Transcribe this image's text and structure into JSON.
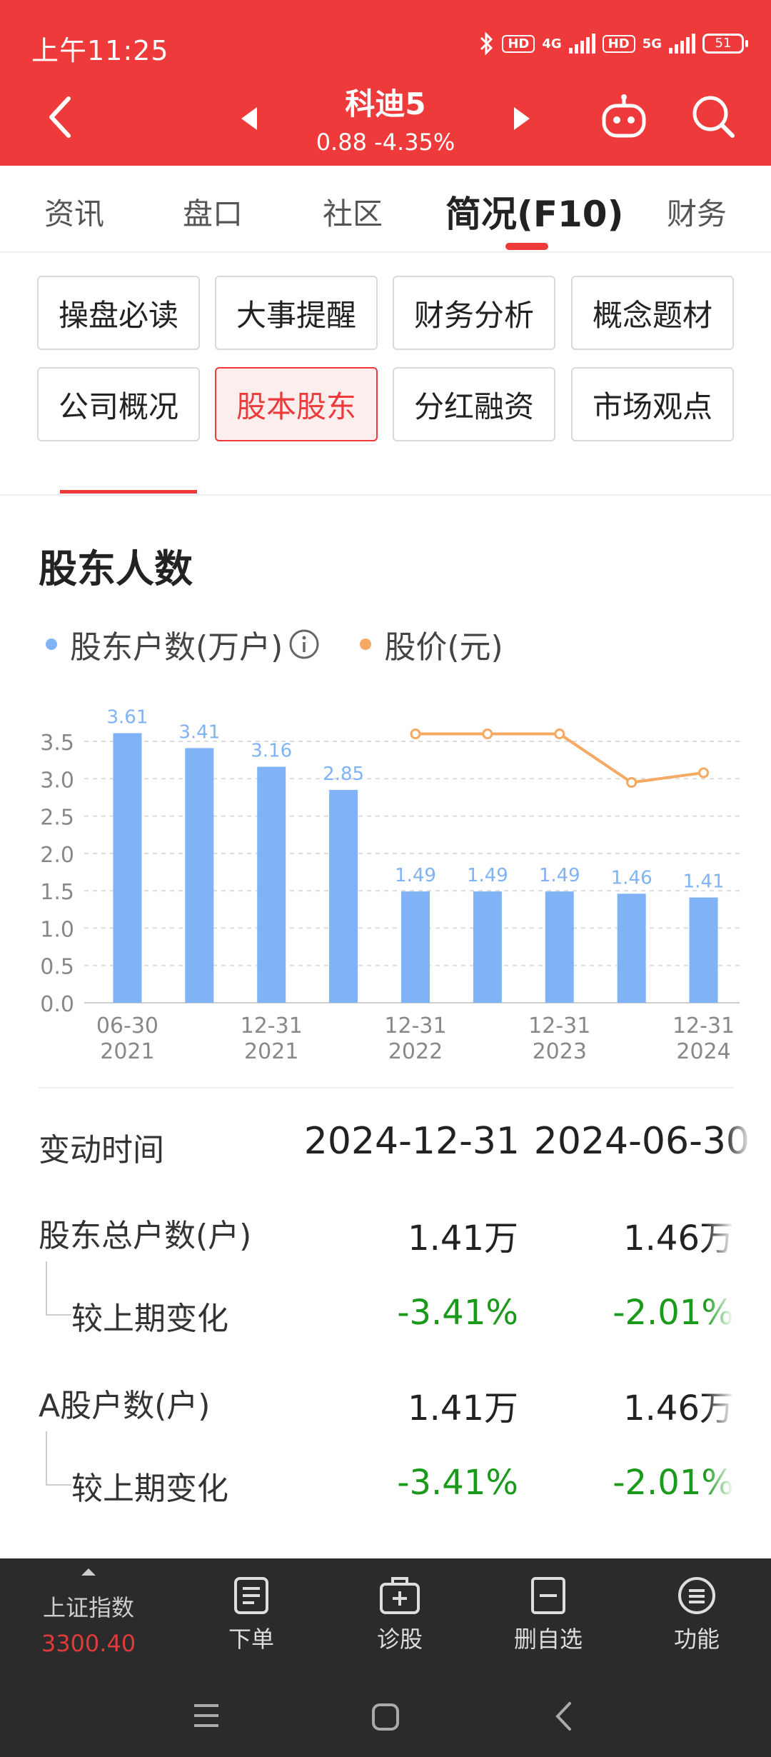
{
  "status": {
    "time": "上午11:25",
    "hd1": "HD",
    "net1": "4G",
    "hd2": "HD",
    "net2": "5G",
    "battery": "51"
  },
  "header": {
    "stock_name": "科迪5",
    "quote": "0.88  -4.35%"
  },
  "tabs": [
    {
      "label": "资讯"
    },
    {
      "label": "盘口"
    },
    {
      "label": "社区"
    },
    {
      "label": "简况(F10)"
    },
    {
      "label": "财务"
    }
  ],
  "sub_buttons": [
    {
      "label": "操盘必读"
    },
    {
      "label": "大事提醒"
    },
    {
      "label": "财务分析"
    },
    {
      "label": "概念题材"
    },
    {
      "label": "公司概况"
    },
    {
      "label": "股本股东"
    },
    {
      "label": "分红融资"
    },
    {
      "label": "市场观点"
    }
  ],
  "section": {
    "title": "股东人数"
  },
  "legend": {
    "holders": "股东户数(万户)",
    "price": "股价(元)"
  },
  "colors": {
    "accent": "#ee3a3a",
    "bar": "#7fb3f5",
    "line": "#f5a962",
    "positive_change": "#1a9a1a"
  },
  "chart_data": {
    "type": "bar",
    "categories": [
      "06-30 2021",
      "",
      "12-31 2021",
      "",
      "12-31 2022",
      "",
      "12-31 2023",
      "",
      "12-31 2024"
    ],
    "x_tick_labels": [
      {
        "index": 0,
        "line1": "06-30",
        "line2": "2021"
      },
      {
        "index": 2,
        "line1": "12-31",
        "line2": "2021"
      },
      {
        "index": 4,
        "line1": "12-31",
        "line2": "2022"
      },
      {
        "index": 6,
        "line1": "12-31",
        "line2": "2023"
      },
      {
        "index": 8,
        "line1": "12-31",
        "line2": "2024"
      }
    ],
    "series": [
      {
        "name": "股东户数(万户)",
        "type": "bar",
        "values": [
          3.61,
          3.41,
          3.16,
          2.85,
          1.49,
          1.49,
          1.49,
          1.46,
          1.41
        ]
      },
      {
        "name": "股价(元)",
        "type": "line",
        "values": [
          null,
          null,
          null,
          null,
          3.6,
          3.6,
          3.6,
          2.95,
          3.08
        ]
      }
    ],
    "data_labels": [
      "3.61",
      "3.41",
      "3.16",
      "2.85",
      "1.49",
      "1.49",
      "1.49",
      "1.46",
      "1.41"
    ],
    "yticks": [
      "0.0",
      "0.5",
      "1.0",
      "1.5",
      "2.0",
      "2.5",
      "3.0",
      "3.5"
    ],
    "ylim": [
      0,
      3.5
    ],
    "grid": true,
    "legend": "top-left"
  },
  "table": {
    "header": {
      "label": "变动时间",
      "col1": "2024-12-31",
      "col2": "2024-06-30"
    },
    "rows": [
      {
        "label": "股东总户数(户)",
        "col1": "1.41万",
        "col2": "1.46万"
      },
      {
        "label": "较上期变化",
        "col1": "-3.41%",
        "col2": "-2.01%"
      },
      {
        "label": "A股户数(户)",
        "col1": "1.41万",
        "col2": "1.46万"
      },
      {
        "label": "较上期变化",
        "col1": "-3.41%",
        "col2": "-2.01%"
      }
    ]
  },
  "bottom_bar": {
    "index_name": "上证指数",
    "index_value": "3300.40",
    "items": [
      {
        "label": "下单"
      },
      {
        "label": "诊股"
      },
      {
        "label": "删自选"
      },
      {
        "label": "功能"
      }
    ]
  }
}
